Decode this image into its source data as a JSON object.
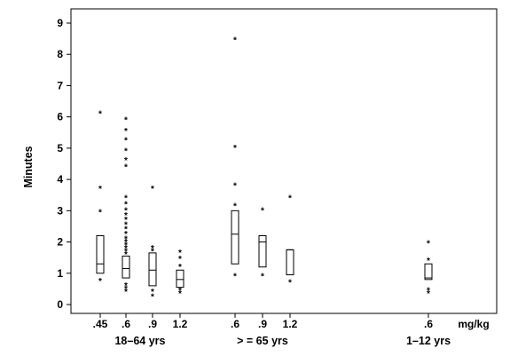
{
  "chart_data": {
    "type": "box",
    "ylabel": "Minutes",
    "ylim": [
      0,
      9
    ],
    "yticks": [
      "0",
      "1",
      "2",
      "3",
      "4",
      "5",
      "6",
      "7",
      "8",
      "9"
    ],
    "x_unit_label": "mg/kg",
    "groups": [
      {
        "name": "18–64 yrs",
        "categories": [
          ".45",
          ".6",
          ".9",
          "1.2"
        ]
      },
      {
        "name": "> = 65 yrs",
        "categories": [
          ".6",
          ".9",
          "1.2"
        ]
      },
      {
        "name": "1–12 yrs",
        "categories": [
          ".6"
        ]
      }
    ],
    "boxes": [
      {
        "group": "18–64 yrs",
        "dose": ".45",
        "q1": 1.0,
        "median": 1.3,
        "q3": 2.2,
        "outliers": [
          0.8,
          3.0,
          3.75,
          6.15
        ]
      },
      {
        "group": "18–64 yrs",
        "dose": ".6",
        "q1": 0.85,
        "median": 1.15,
        "q3": 1.55,
        "outliers": [
          0.45,
          0.55,
          0.65,
          1.65,
          1.75,
          1.85,
          1.95,
          2.05,
          2.15,
          2.3,
          2.45,
          2.6,
          2.75,
          2.9,
          3.05,
          3.25,
          3.45,
          4.45,
          4.65,
          4.95,
          5.3,
          5.6,
          5.95
        ]
      },
      {
        "group": "18–64 yrs",
        "dose": ".9",
        "q1": 0.6,
        "median": 1.1,
        "q3": 1.65,
        "outliers": [
          0.3,
          0.45,
          1.75,
          1.85,
          3.75
        ]
      },
      {
        "group": "18–64 yrs",
        "dose": "1.2",
        "q1": 0.55,
        "median": 0.8,
        "q3": 1.1,
        "outliers": [
          0.4,
          0.5,
          1.25,
          1.5,
          1.7
        ]
      },
      {
        "group": "> = 65 yrs",
        "dose": ".6",
        "q1": 1.3,
        "median": 2.25,
        "q3": 3.0,
        "outliers": [
          0.95,
          3.2,
          3.85,
          5.05,
          8.5
        ]
      },
      {
        "group": "> = 65 yrs",
        "dose": ".9",
        "q1": 1.2,
        "median": 2.0,
        "q3": 2.2,
        "outliers": [
          0.95,
          3.05
        ]
      },
      {
        "group": "> = 65 yrs",
        "dose": "1.2",
        "q1": 0.95,
        "median": 1.75,
        "q3": 1.75,
        "outliers": [
          0.75,
          3.45
        ]
      },
      {
        "group": "1–12 yrs",
        "dose": ".6",
        "q1": 0.8,
        "median": 0.85,
        "q3": 1.3,
        "outliers": [
          0.4,
          0.5,
          1.45,
          2.0
        ]
      }
    ]
  }
}
